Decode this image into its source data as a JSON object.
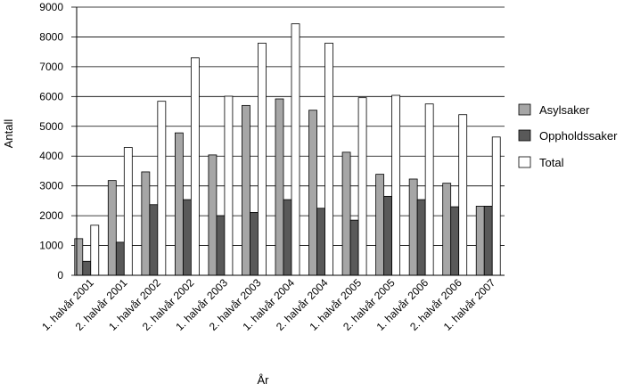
{
  "chart_data": {
    "type": "bar",
    "title": "",
    "xlabel": "År",
    "ylabel": "Antall",
    "ylim": [
      0,
      9000
    ],
    "yticks": [
      0,
      1000,
      2000,
      3000,
      4000,
      5000,
      6000,
      7000,
      8000,
      9000
    ],
    "grid": true,
    "legend_position": "right",
    "categories": [
      "1. halvår 2001",
      "2. halvår 2001",
      "1. halvår 2002",
      "2. halvår 2002",
      "1. halvår 2003",
      "2. halvår 2003",
      "1. halvår 2004",
      "2. halvår 2004",
      "1. halvår 2005",
      "2. halvår 2005",
      "1. halvår 2006",
      "2. halvår 2006",
      "1. halvår 2007"
    ],
    "series": [
      {
        "name": "Asylsaker",
        "color": "#a6a6a6",
        "values": [
          1230,
          3180,
          3470,
          4780,
          4040,
          5700,
          5920,
          5540,
          4130,
          3390,
          3230,
          3090,
          2320
        ]
      },
      {
        "name": "Oppholdssaker",
        "color": "#595959",
        "values": [
          470,
          1110,
          2370,
          2540,
          2000,
          2110,
          2540,
          2250,
          1850,
          2650,
          2540,
          2300,
          2320
        ]
      },
      {
        "name": "Total",
        "color": "#ffffff",
        "values": [
          1680,
          4290,
          5840,
          7300,
          6010,
          7790,
          8440,
          7790,
          5960,
          6040,
          5750,
          5390,
          4640
        ]
      }
    ]
  }
}
